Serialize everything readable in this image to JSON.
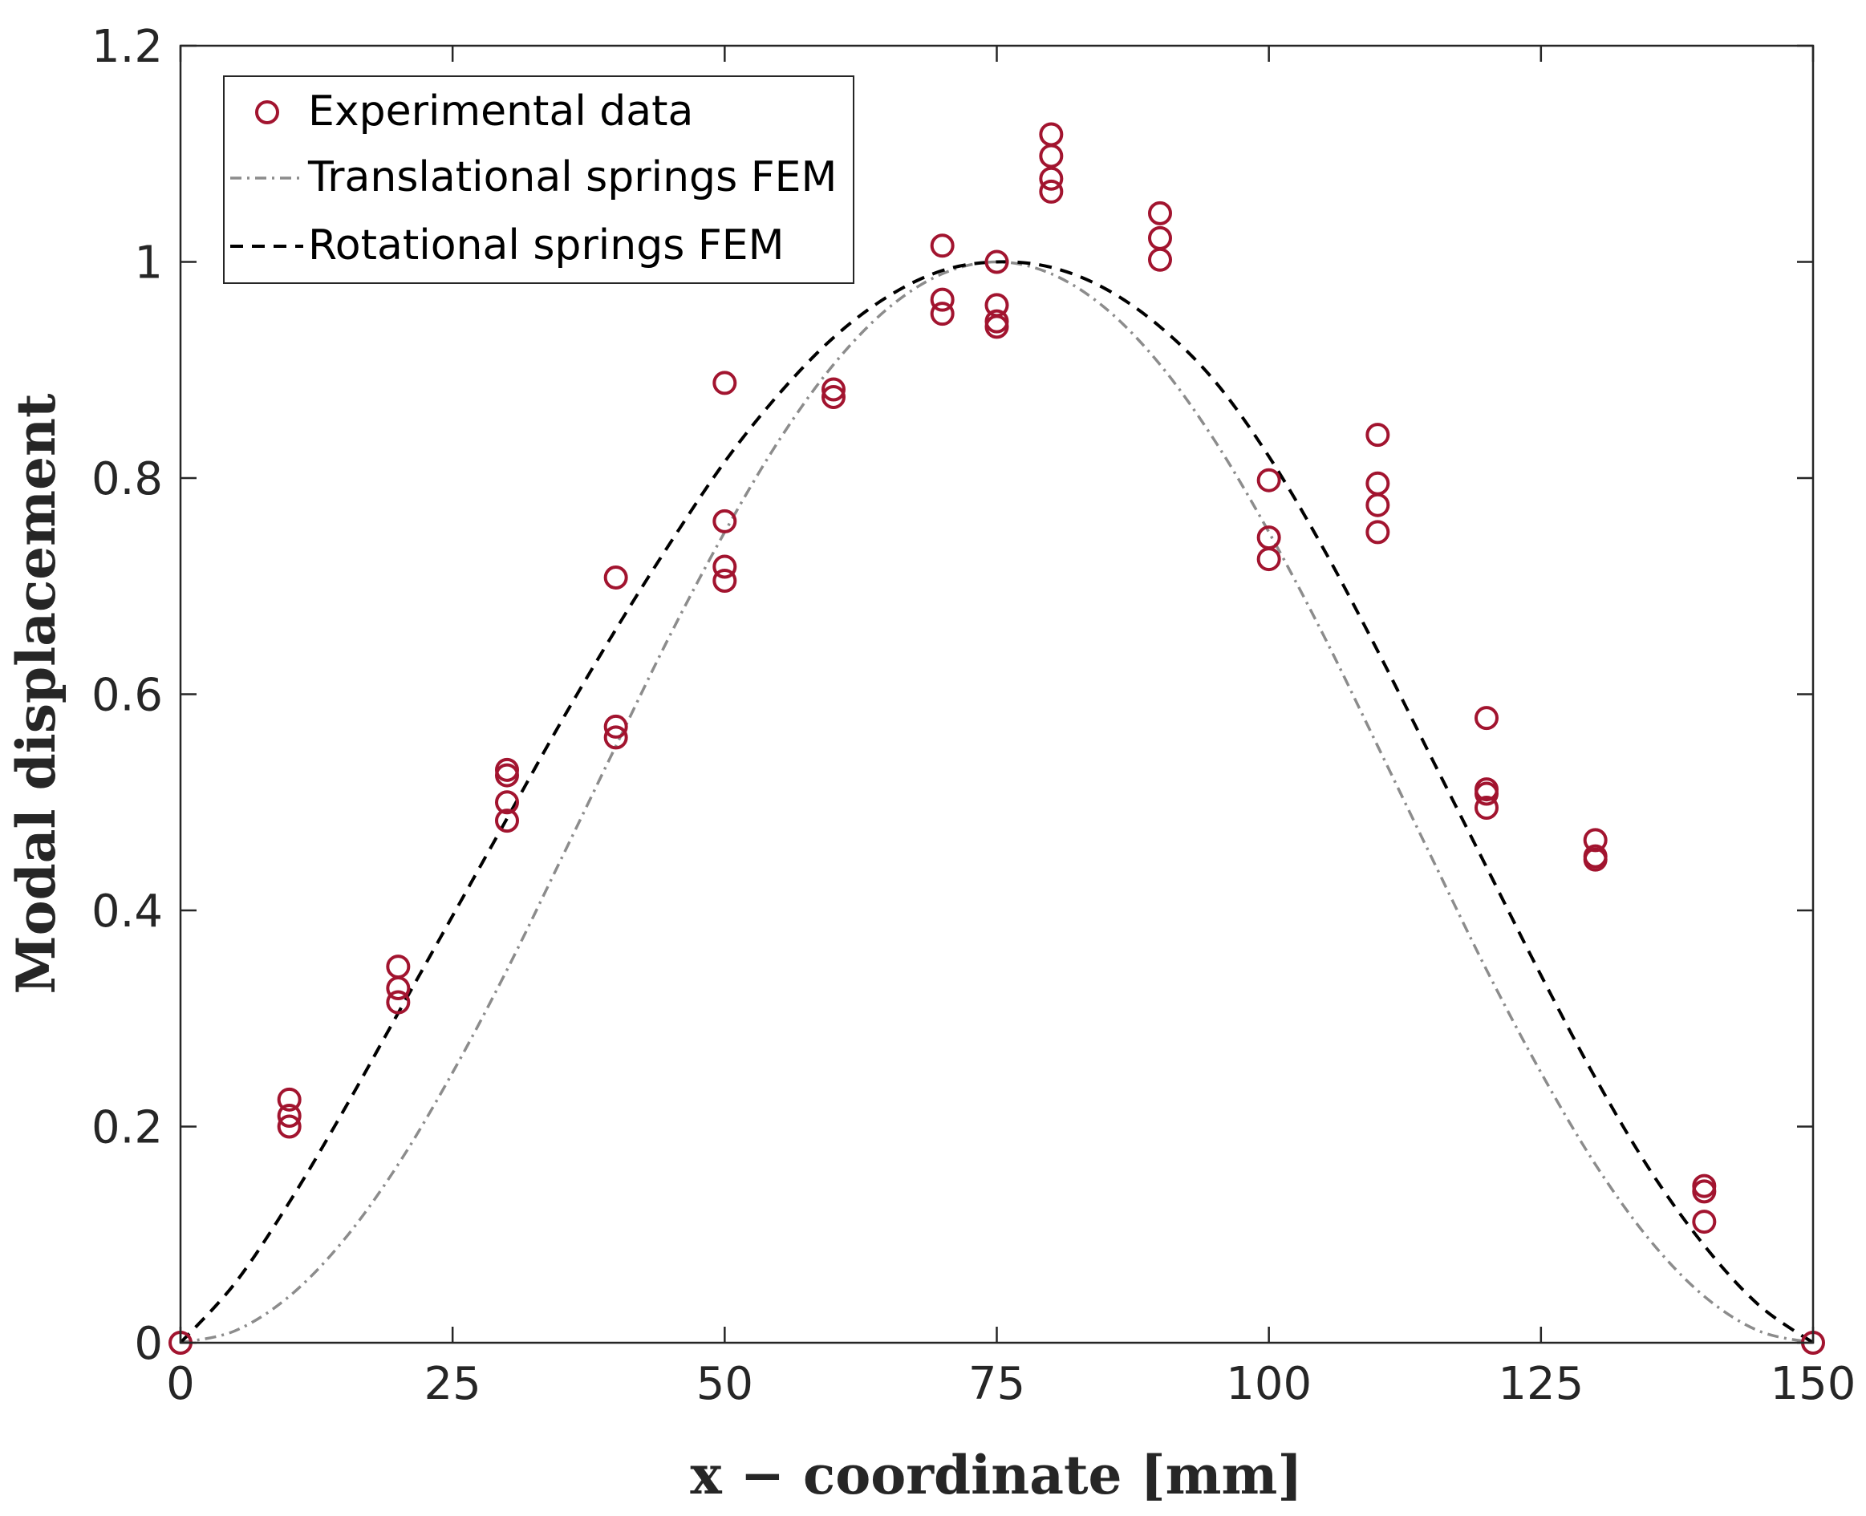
{
  "chart_data": {
    "type": "scatter",
    "title": "",
    "xlabel": "x − coordinate [mm]",
    "ylabel": "Modal displacement",
    "xlim": [
      0,
      150
    ],
    "ylim": [
      0,
      1.2
    ],
    "xticks": [
      0,
      25,
      50,
      75,
      100,
      125,
      150
    ],
    "xtick_labels": [
      "0",
      "25",
      "50",
      "75",
      "100",
      "125",
      "150"
    ],
    "yticks": [
      0,
      0.2,
      0.4,
      0.6,
      0.8,
      1.0,
      1.2
    ],
    "ytick_labels": [
      "0",
      "0.2",
      "0.4",
      "0.6",
      "0.8",
      "1",
      "1.2"
    ],
    "grid": false,
    "legend_position": "top-left",
    "colors": {
      "experimental": "#A2142F",
      "translational": "#8c8c8c",
      "rotational": "#000000",
      "axis": "#262626"
    },
    "series": [
      {
        "name": "Experimental data",
        "kind": "scatter",
        "marker": "circle-open",
        "points": [
          [
            0,
            0
          ],
          [
            10,
            0.225
          ],
          [
            10,
            0.21
          ],
          [
            10,
            0.2
          ],
          [
            20,
            0.348
          ],
          [
            20,
            0.328
          ],
          [
            20,
            0.315
          ],
          [
            30,
            0.53
          ],
          [
            30,
            0.525
          ],
          [
            30,
            0.5
          ],
          [
            30,
            0.483
          ],
          [
            40,
            0.708
          ],
          [
            40,
            0.57
          ],
          [
            40,
            0.56
          ],
          [
            50,
            0.888
          ],
          [
            50,
            0.76
          ],
          [
            50,
            0.718
          ],
          [
            50,
            0.705
          ],
          [
            60,
            0.882
          ],
          [
            60,
            0.875
          ],
          [
            70,
            1.015
          ],
          [
            70,
            0.965
          ],
          [
            70,
            0.952
          ],
          [
            75,
            1.0
          ],
          [
            75,
            0.96
          ],
          [
            75,
            0.945
          ],
          [
            75,
            0.94
          ],
          [
            80,
            1.118
          ],
          [
            80,
            1.098
          ],
          [
            80,
            1.077
          ],
          [
            80,
            1.065
          ],
          [
            90,
            1.045
          ],
          [
            90,
            1.022
          ],
          [
            90,
            1.002
          ],
          [
            100,
            0.798
          ],
          [
            100,
            0.745
          ],
          [
            100,
            0.725
          ],
          [
            110,
            0.84
          ],
          [
            110,
            0.795
          ],
          [
            110,
            0.775
          ],
          [
            110,
            0.75
          ],
          [
            120,
            0.578
          ],
          [
            120,
            0.512
          ],
          [
            120,
            0.508
          ],
          [
            120,
            0.495
          ],
          [
            130,
            0.465
          ],
          [
            130,
            0.45
          ],
          [
            130,
            0.447
          ],
          [
            140,
            0.145
          ],
          [
            140,
            0.14
          ],
          [
            140,
            0.112
          ],
          [
            150,
            0
          ]
        ]
      },
      {
        "name": "Translational springs FEM",
        "kind": "line",
        "style": "dash-dot",
        "x": [
          0,
          5,
          10,
          15,
          20,
          25,
          30,
          35,
          40,
          45,
          50,
          55,
          60,
          65,
          70,
          75,
          80,
          85,
          90,
          95,
          100,
          105,
          110,
          115,
          120,
          125,
          130,
          135,
          140,
          145,
          150
        ],
        "y": [
          0,
          0.011,
          0.043,
          0.095,
          0.165,
          0.25,
          0.345,
          0.448,
          0.552,
          0.655,
          0.75,
          0.835,
          0.905,
          0.957,
          0.989,
          1.0,
          0.989,
          0.957,
          0.905,
          0.835,
          0.75,
          0.655,
          0.552,
          0.448,
          0.345,
          0.25,
          0.165,
          0.095,
          0.043,
          0.011,
          0
        ]
      },
      {
        "name": "Rotational springs FEM",
        "kind": "line",
        "style": "dashed",
        "x": [
          0,
          5,
          10,
          15,
          20,
          25,
          30,
          35,
          40,
          45,
          50,
          55,
          60,
          65,
          70,
          75,
          80,
          85,
          90,
          95,
          100,
          105,
          110,
          115,
          120,
          125,
          130,
          135,
          140,
          145,
          150
        ],
        "y": [
          0,
          0.055,
          0.13,
          0.215,
          0.305,
          0.395,
          0.485,
          0.575,
          0.66,
          0.74,
          0.815,
          0.878,
          0.93,
          0.968,
          0.992,
          1.0,
          0.995,
          0.975,
          0.94,
          0.89,
          0.82,
          0.735,
          0.64,
          0.54,
          0.44,
          0.34,
          0.245,
          0.16,
          0.09,
          0.035,
          0
        ]
      }
    ]
  }
}
